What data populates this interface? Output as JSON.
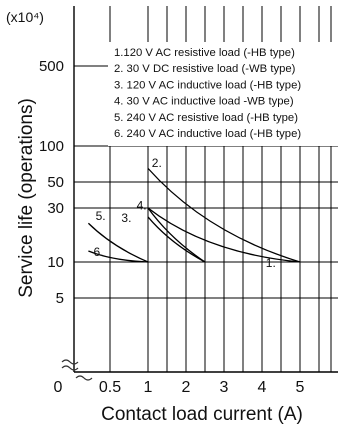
{
  "chart_data": {
    "type": "line",
    "y_unit_label": "(x10⁴)",
    "xlabel": "Contact load current (A)",
    "ylabel": "Service life (operations)",
    "x_ticks": [
      "0.5",
      "1",
      "2",
      "3",
      "4",
      "5"
    ],
    "x_zero_label": "0",
    "y_ticks": [
      "500",
      "100",
      "50",
      "30",
      "10",
      "5"
    ],
    "y_scale": "log",
    "xlim": [
      0,
      6
    ],
    "ylim": [
      1,
      1500
    ],
    "grid": true,
    "legend_position": "top-right",
    "legend": [
      "1.120 V AC resistive load (-HB type)",
      "2.  30 V DC resistive load (-WB type)",
      "3. 120 V AC inductive load (-HB type)",
      "4.   30 V AC inductive load -WB type)",
      "5. 240 V AC resistive load (-HB type)",
      "6. 240 V AC inductive load (-HB type)"
    ],
    "series": [
      {
        "name": "1.",
        "x": [
          1,
          5
        ],
        "y": [
          30,
          10
        ]
      },
      {
        "name": "2.",
        "x": [
          1,
          5
        ],
        "y": [
          65,
          10
        ]
      },
      {
        "name": "3.",
        "x": [
          1,
          2.5
        ],
        "y": [
          25,
          10
        ]
      },
      {
        "name": "4.",
        "x": [
          1,
          2.5
        ],
        "y": [
          30,
          10
        ]
      },
      {
        "name": "5.",
        "x": [
          0.2,
          1
        ],
        "y": [
          22,
          10
        ]
      },
      {
        "name": "6.",
        "x": [
          0.2,
          1
        ],
        "y": [
          12.5,
          10
        ]
      }
    ]
  }
}
